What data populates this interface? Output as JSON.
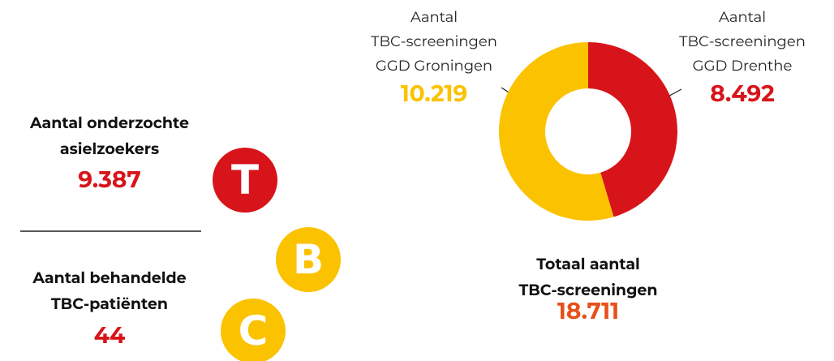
{
  "chart_data": {
    "type": "donut",
    "categories": [
      "Aantal\nTBC-screeningen\nGGD Groningen",
      "Aantal\nTBC-screeningen\nGGD Drenthe"
    ],
    "values": [
      10219,
      8492
    ],
    "value_labels": [
      "10.219",
      "8.492"
    ],
    "colors": [
      "#fbc200",
      "#d7141a"
    ],
    "total_label": "Totaal aantal\nTBC-screeningen",
    "total": "18.711"
  },
  "stats": [
    {
      "label": "Aantal onderzochte\nasielzoekers",
      "value": "9.387"
    },
    {
      "label": "Aantal behandelde\nTBC-patiënten",
      "value": "44"
    }
  ],
  "icons": [
    "T",
    "B",
    "C"
  ]
}
